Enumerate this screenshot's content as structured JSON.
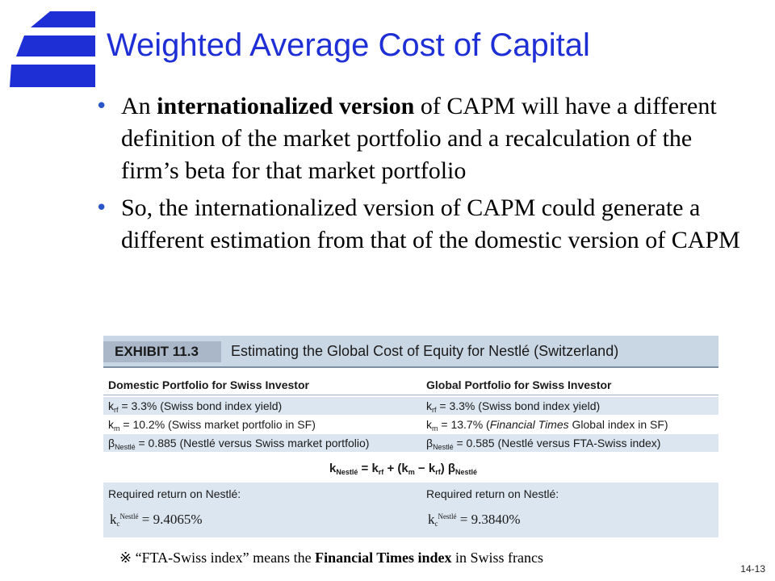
{
  "title": "Weighted Average Cost of Capital",
  "bullets": [
    {
      "pre": "An ",
      "bold": "internationalized version",
      "post": " of CAPM will have a different definition of the market portfolio and a recalculation of the firm’s beta for that market portfolio"
    },
    {
      "text": "So, the internationalized version of CAPM could generate a different estimation from that of the domestic version of CAPM"
    }
  ],
  "exhibit": {
    "number": "EXHIBIT 11.3",
    "title": "Estimating the Global Cost of Equity for Nestlé (Switzerland)",
    "domestic": {
      "header": "Domestic Portfolio for Swiss Investor",
      "krf": "= 3.3% (Swiss bond index yield)",
      "km": "= 10.2% (Swiss market portfolio in SF)",
      "beta": "= 0.885 (Nestlé versus Swiss market portfolio)",
      "required_label": "Required return on Nestlé:",
      "required_value": "= 9.4065%"
    },
    "global": {
      "header": "Global Portfolio for Swiss Investor",
      "krf": "= 3.3% (Swiss bond index yield)",
      "km_pre": "= 13.7% (",
      "km_italic": "Financial Times",
      "km_post": " Global index in SF)",
      "beta": "= 0.585 (Nestlé versus FTA-Swiss index)",
      "required_label": "Required return on Nestlé:",
      "required_value": "= 9.3840%"
    },
    "symbols": {
      "k": "k",
      "rf": "rf",
      "m": "m",
      "beta": "β",
      "nestle": "Nestlé",
      "c": "c"
    },
    "formula": "k",
    "formula_sub": "Nestlé",
    "formula_rest": " = k",
    "formula_rest_sub": "rf",
    "formula_mid": " + (k",
    "formula_mid_sub": "m",
    "formula_mid2": " − k",
    "formula_mid2_sub": "rf",
    "formula_end": ") β",
    "formula_end_sub": "Nestlé"
  },
  "note": {
    "marker": "※",
    "pre": " “FTA-Swiss index” means the ",
    "bold": "Financial Times index",
    "post": " in Swiss francs"
  },
  "page_number": "14-13",
  "colors": {
    "title": "#1f2fd6",
    "logo": "#1f2fd6",
    "exhibit_band": "#c9d6e4",
    "row_shade": "#dce6f0"
  }
}
